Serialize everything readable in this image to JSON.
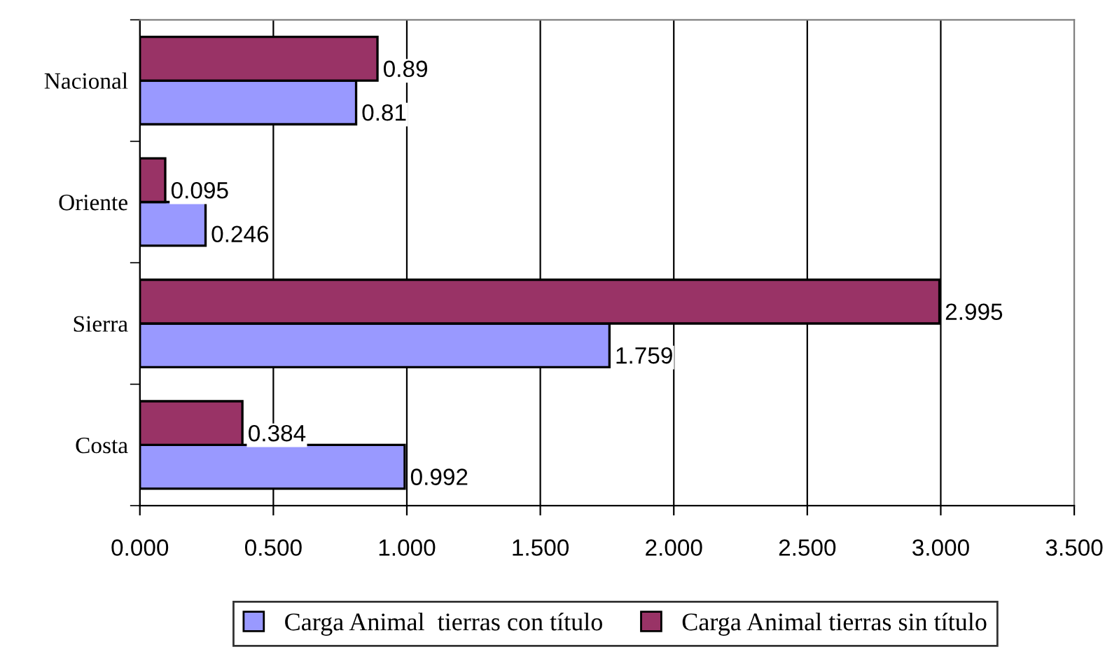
{
  "chart_data": {
    "type": "bar",
    "orientation": "horizontal",
    "categories": [
      "Nacional",
      "Oriente",
      "Sierra",
      "Costa"
    ],
    "series": [
      {
        "name": "Carga Animal  tierras con título",
        "color": "#9999ff",
        "values": [
          0.81,
          0.246,
          1.759,
          0.992
        ]
      },
      {
        "name": "Carga Animal tierras sin título",
        "color": "#993366",
        "values": [
          0.89,
          0.095,
          2.995,
          0.384
        ]
      }
    ],
    "xlim": [
      0,
      3.5
    ],
    "xticks": [
      {
        "value": 0,
        "label": "0.000"
      },
      {
        "value": 0.5,
        "label": "0.500"
      },
      {
        "value": 1,
        "label": "1.000"
      },
      {
        "value": 1.5,
        "label": "1.500"
      },
      {
        "value": 2,
        "label": "2.000"
      },
      {
        "value": 2.5,
        "label": "2.500"
      },
      {
        "value": 3,
        "label": "3.000"
      },
      {
        "value": 3.5,
        "label": "3.500"
      }
    ],
    "grid": "x",
    "legend": "bottom",
    "data_labels": true
  }
}
